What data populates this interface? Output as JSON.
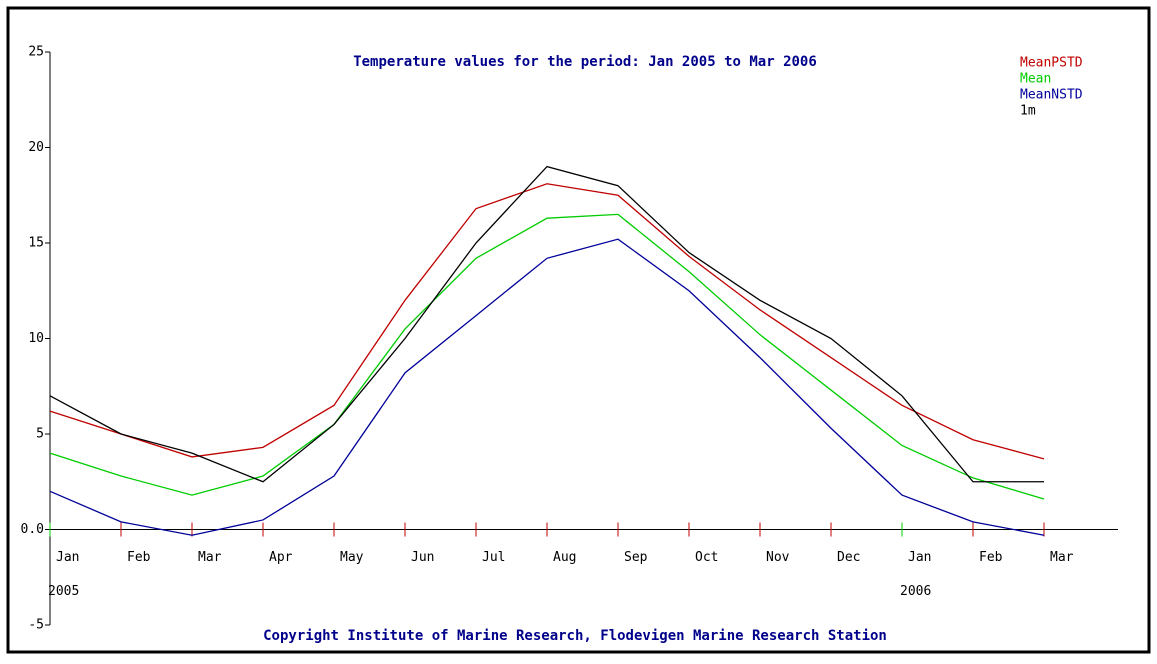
{
  "chart_data": {
    "type": "line",
    "title": "Temperature values for the period: Jan 2005 to Mar 2006",
    "footer": "Copyright Institute of Marine Research, Flodevigen Marine Research Station",
    "categories": [
      "Jan",
      "Feb",
      "Mar",
      "Apr",
      "May",
      "Jun",
      "Jul",
      "Aug",
      "Sep",
      "Oct",
      "Nov",
      "Dec",
      "Jan",
      "Feb",
      "Mar"
    ],
    "year_labels": [
      "2005",
      null,
      null,
      null,
      null,
      null,
      null,
      null,
      null,
      null,
      null,
      null,
      "2006",
      null,
      null
    ],
    "series": [
      {
        "name": "MeanPSTD",
        "color": "#c00000",
        "values": [
          6.2,
          5.0,
          3.8,
          4.3,
          6.5,
          12.0,
          16.8,
          18.1,
          17.5,
          14.3,
          11.5,
          9.0,
          6.5,
          4.7,
          3.7
        ]
      },
      {
        "name": "Mean",
        "color": "#00cc00",
        "values": [
          4.0,
          2.8,
          1.8,
          2.8,
          5.5,
          10.5,
          14.2,
          16.3,
          16.5,
          13.5,
          10.2,
          7.3,
          4.4,
          2.7,
          1.6
        ]
      },
      {
        "name": "MeanNSTD",
        "color": "#000099",
        "values": [
          2.0,
          0.4,
          -0.3,
          0.5,
          2.8,
          8.2,
          11.2,
          14.2,
          15.2,
          12.5,
          9.0,
          5.3,
          1.8,
          0.4,
          -0.3
        ]
      },
      {
        "name": "1m",
        "color": "#000000",
        "values": [
          7.0,
          5.0,
          4.0,
          2.5,
          5.5,
          10.0,
          15.0,
          19.0,
          18.0,
          14.5,
          12.0,
          10.0,
          7.0,
          2.5,
          2.5
        ]
      }
    ],
    "ylim": [
      -5,
      25
    ],
    "yticks": [
      -5,
      {
        "value": 0,
        "label": "0.0"
      },
      5,
      10,
      15,
      20,
      25
    ],
    "legend": "top-right"
  }
}
